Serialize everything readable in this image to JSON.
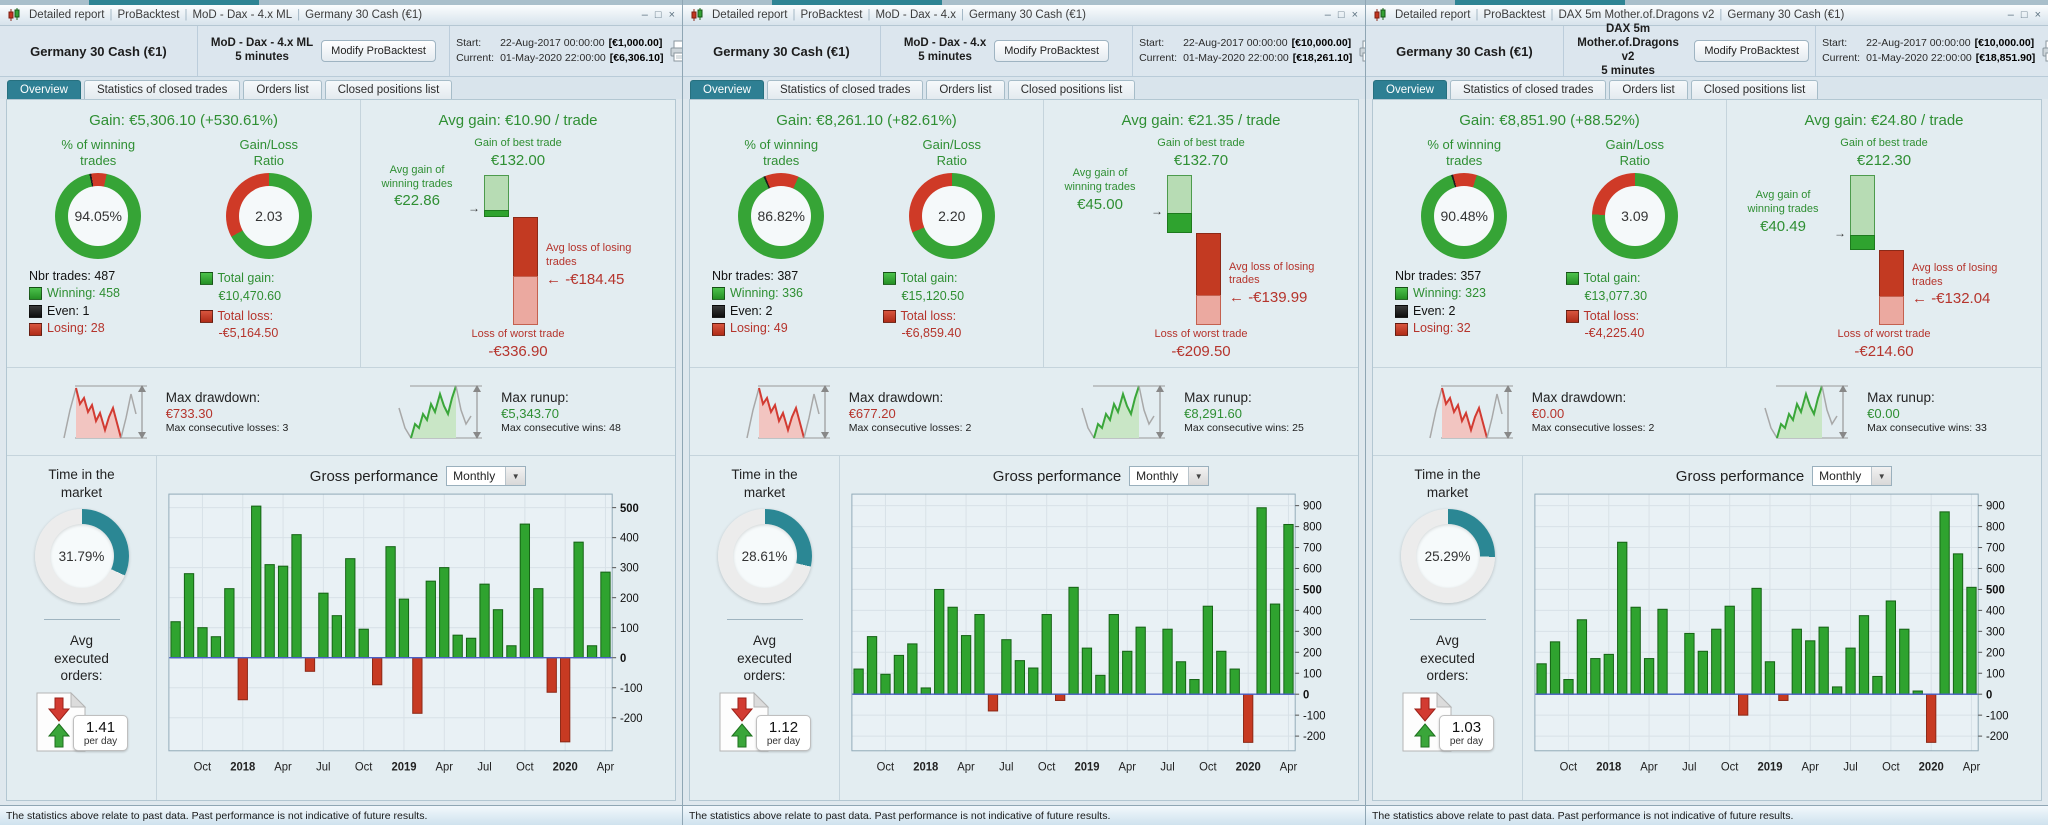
{
  "tabs": [
    "Overview",
    "Statistics of closed trades",
    "Orders list",
    "Closed positions list"
  ],
  "footer": {
    "disclaimer": "The statistics above relate to past data. Past performance is not indicative of future results."
  },
  "labels": {
    "sep": "|",
    "minimize": "–",
    "maximize": "□",
    "close": "×",
    "modify": "Modify ProBacktest",
    "start": "Start:",
    "current": "Current:",
    "gain_prefix": "Gain:",
    "avg_gain_prefix": "Avg gain:",
    "pct_winning": "% of winning\ntrades",
    "ratio_head": "Gain/Loss\nRatio",
    "nbr_trades": "Nbr trades:",
    "winning": "Winning:",
    "even": "Even:",
    "losing": "Losing:",
    "total_gain": "Total gain:",
    "total_loss": "Total loss:",
    "best_trade": "Gain of best trade",
    "avg_win": "Avg gain of\nwinning trades",
    "avg_loss": "Avg loss of losing\ntrades",
    "worst_trade": "Loss of worst trade",
    "arrow_right": "→",
    "arrow_left": "←",
    "max_drawdown": "Max drawdown:",
    "max_runup": "Max runup:",
    "consec_losses": "Max consecutive losses:",
    "consec_wins": "Max consecutive wins:",
    "time_market": "Time in the\nmarket",
    "gross_performance": "Gross performance",
    "avg_orders": "Avg\nexecuted\norders:",
    "per_day": "per day",
    "dropdown_arrow": "▼"
  },
  "panels": [
    {
      "breadcrumb": [
        "Detailed report",
        "ProBacktest",
        "MoD - Dax - 4.x ML",
        "Germany 30 Cash (€1)"
      ],
      "instrument": "Germany 30 Cash (€1)",
      "strategy": "MoD - Dax - 4.x ML",
      "timeframe": "5 minutes",
      "start_date": "22-Aug-2017 00:00:00",
      "start_amount": "[€1,000.00]",
      "current_date": "01-May-2020 22:00:00",
      "current_amount": "[€6,306.10]",
      "gain": "€5,306.10 (+530.61%)",
      "avg_gain": "€10.90 / trade",
      "win_pct": "94.05%",
      "ratio": "2.03",
      "nbr_trades": 487,
      "winning": 458,
      "even": 1,
      "losing": 28,
      "total_gain": "€10,470.60",
      "total_loss": "-€5,164.50",
      "best_trade": "€132.00",
      "avg_win": "€22.86",
      "avg_loss": "-€184.45",
      "worst_trade": "-€336.90",
      "max_drawdown": "€733.30",
      "consec_losses": 3,
      "max_runup": "€5,343.70",
      "consec_wins": 48,
      "time_in_market": "31.79%",
      "avg_orders": "1.41",
      "chart_period": "Monthly"
    },
    {
      "breadcrumb": [
        "Detailed report",
        "ProBacktest",
        "MoD - Dax - 4.x",
        "Germany 30 Cash (€1)"
      ],
      "instrument": "Germany 30 Cash (€1)",
      "strategy": "MoD - Dax - 4.x",
      "timeframe": "5 minutes",
      "start_date": "22-Aug-2017 00:00:00",
      "start_amount": "[€10,000.00]",
      "current_date": "01-May-2020 22:00:00",
      "current_amount": "[€18,261.10]",
      "gain": "€8,261.10 (+82.61%)",
      "avg_gain": "€21.35 / trade",
      "win_pct": "86.82%",
      "ratio": "2.20",
      "nbr_trades": 387,
      "winning": 336,
      "even": 2,
      "losing": 49,
      "total_gain": "€15,120.50",
      "total_loss": "-€6,859.40",
      "best_trade": "€132.70",
      "avg_win": "€45.00",
      "avg_loss": "-€139.99",
      "worst_trade": "-€209.50",
      "max_drawdown": "€677.20",
      "consec_losses": 2,
      "max_runup": "€8,291.60",
      "consec_wins": 25,
      "time_in_market": "28.61%",
      "avg_orders": "1.12",
      "chart_period": "Monthly"
    },
    {
      "breadcrumb": [
        "Detailed report",
        "ProBacktest",
        "DAX 5m Mother.of.Dragons v2",
        "Germany 30 Cash (€1)"
      ],
      "instrument": "Germany 30 Cash (€1)",
      "strategy": "DAX 5m Mother.of.Dragons v2",
      "timeframe": "5 minutes",
      "start_date": "22-Aug-2017 00:00:00",
      "start_amount": "[€10,000.00]",
      "current_date": "01-May-2020 22:00:00",
      "current_amount": "[€18,851.90]",
      "gain": "€8,851.90 (+88.52%)",
      "avg_gain": "€24.80 / trade",
      "win_pct": "90.48%",
      "ratio": "3.09",
      "nbr_trades": 357,
      "winning": 323,
      "even": 2,
      "losing": 32,
      "total_gain": "€13,077.30",
      "total_loss": "-€4,225.40",
      "best_trade": "€212.30",
      "avg_win": "€40.49",
      "avg_loss": "-€132.04",
      "worst_trade": "-€214.60",
      "max_drawdown": "€0.00",
      "consec_losses": 2,
      "max_runup": "€0.00",
      "consec_wins": 33,
      "time_in_market": "25.29%",
      "avg_orders": "1.03",
      "chart_period": "Monthly"
    }
  ],
  "chart_data": [
    {
      "type": "bar",
      "title": "Gross performance",
      "period": "Monthly",
      "start_month": "Aug 2017",
      "values": [
        120,
        280,
        100,
        70,
        230,
        -140,
        505,
        310,
        305,
        410,
        -45,
        215,
        140,
        330,
        95,
        -90,
        370,
        195,
        -185,
        255,
        300,
        75,
        65,
        245,
        160,
        40,
        445,
        230,
        -115,
        -280,
        385,
        40,
        285
      ],
      "ylim": [
        -310,
        545
      ],
      "y_ticks": [
        -200,
        -100,
        0,
        100,
        200,
        300,
        400,
        500
      ],
      "y_bold": [
        0,
        500
      ],
      "x_ticks": [
        {
          "i": 2,
          "l": "Oct"
        },
        {
          "i": 5,
          "l": "2018",
          "b": true
        },
        {
          "i": 8,
          "l": "Apr"
        },
        {
          "i": 11,
          "l": "Jul"
        },
        {
          "i": 14,
          "l": "Oct"
        },
        {
          "i": 17,
          "l": "2019",
          "b": true
        },
        {
          "i": 20,
          "l": "Apr"
        },
        {
          "i": 23,
          "l": "Jul"
        },
        {
          "i": 26,
          "l": "Oct"
        },
        {
          "i": 29,
          "l": "2020",
          "b": true
        },
        {
          "i": 32,
          "l": "Apr"
        }
      ]
    },
    {
      "type": "bar",
      "title": "Gross performance",
      "period": "Monthly",
      "start_month": "Aug 2017",
      "values": [
        120,
        275,
        95,
        185,
        240,
        30,
        500,
        415,
        280,
        380,
        -80,
        260,
        160,
        125,
        380,
        -30,
        510,
        220,
        90,
        380,
        205,
        320,
        0,
        310,
        155,
        70,
        420,
        205,
        120,
        -230,
        890,
        430,
        810
      ],
      "ylim": [
        -270,
        955
      ],
      "y_ticks": [
        -200,
        -100,
        0,
        100,
        200,
        300,
        400,
        500,
        600,
        700,
        800,
        900
      ],
      "y_bold": [
        0,
        500
      ],
      "x_ticks": [
        {
          "i": 2,
          "l": "Oct"
        },
        {
          "i": 5,
          "l": "2018",
          "b": true
        },
        {
          "i": 8,
          "l": "Apr"
        },
        {
          "i": 11,
          "l": "Jul"
        },
        {
          "i": 14,
          "l": "Oct"
        },
        {
          "i": 17,
          "l": "2019",
          "b": true
        },
        {
          "i": 20,
          "l": "Apr"
        },
        {
          "i": 23,
          "l": "Jul"
        },
        {
          "i": 26,
          "l": "Oct"
        },
        {
          "i": 29,
          "l": "2020",
          "b": true
        },
        {
          "i": 32,
          "l": "Apr"
        }
      ]
    },
    {
      "type": "bar",
      "title": "Gross performance",
      "period": "Monthly",
      "start_month": "Aug 2017",
      "values": [
        145,
        250,
        70,
        355,
        170,
        190,
        725,
        415,
        170,
        405,
        0,
        290,
        205,
        310,
        420,
        -100,
        505,
        155,
        -30,
        310,
        255,
        320,
        35,
        220,
        375,
        85,
        445,
        310,
        15,
        -230,
        870,
        670,
        510
      ],
      "ylim": [
        -270,
        955
      ],
      "y_ticks": [
        -200,
        -100,
        0,
        100,
        200,
        300,
        400,
        500,
        600,
        700,
        800,
        900
      ],
      "y_bold": [
        0,
        500
      ],
      "x_ticks": [
        {
          "i": 2,
          "l": "Oct"
        },
        {
          "i": 5,
          "l": "2018",
          "b": true
        },
        {
          "i": 8,
          "l": "Apr"
        },
        {
          "i": 11,
          "l": "Jul"
        },
        {
          "i": 14,
          "l": "Oct"
        },
        {
          "i": 17,
          "l": "2019",
          "b": true
        },
        {
          "i": 20,
          "l": "Apr"
        },
        {
          "i": 23,
          "l": "Jul"
        },
        {
          "i": 26,
          "l": "Oct"
        },
        {
          "i": 29,
          "l": "2020",
          "b": true
        },
        {
          "i": 32,
          "l": "Apr"
        }
      ]
    }
  ]
}
